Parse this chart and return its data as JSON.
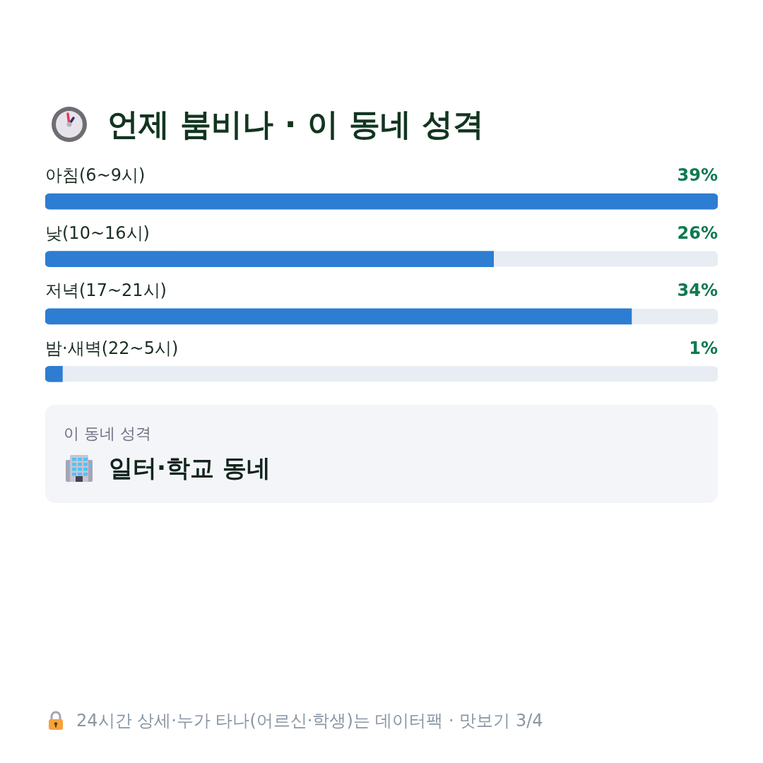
{
  "chart_data": {
    "type": "bar",
    "orientation": "horizontal",
    "title": "언제 붐비나 · 이 동네 성격",
    "categories": [
      "아침(6~9시)",
      "낮(10~16시)",
      "저녁(17~21시)",
      "밤·새벽(22~5시)"
    ],
    "values": [
      39,
      26,
      34,
      1
    ],
    "color": "#2d7dd2",
    "value_labels": [
      "39%",
      "26%",
      "34%",
      "1%"
    ],
    "xlim": [
      0,
      39
    ],
    "tick_labels": "y",
    "annotations": [
      "이 동네 성격",
      "일터·학교 동네",
      "24시간 상세·누가 타나(어르신·학생)는 데이터팩 · 맛보기 3/4"
    ]
  }
}
